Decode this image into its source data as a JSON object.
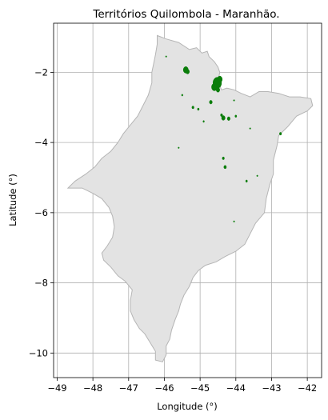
{
  "chart_data": {
    "type": "map",
    "title": "Territórios Quilombola - Maranhão.",
    "xlabel": "Longitude (°)",
    "ylabel": "Latitude (°)",
    "xlim": [
      -49.1,
      -41.6
    ],
    "ylim": [
      -10.7,
      -0.6
    ],
    "xticks": [
      -49,
      -48,
      -47,
      -46,
      -45,
      -44,
      -43,
      -42
    ],
    "yticks": [
      -2,
      -4,
      -6,
      -8,
      -10
    ],
    "xtick_labels": [
      "−49",
      "−48",
      "−47",
      "−46",
      "−45",
      "−44",
      "−43",
      "−42"
    ],
    "ytick_labels": [
      "−2",
      "−4",
      "−6",
      "−8",
      "−10"
    ],
    "grid": true,
    "colors": {
      "state_fill": "#e3e3e3",
      "state_edge": "#b5b5b5",
      "territory": "#0a7d0a"
    },
    "state_outline": [
      [
        -46.2,
        -0.95
      ],
      [
        -45.95,
        -1.05
      ],
      [
        -45.6,
        -1.15
      ],
      [
        -45.3,
        -1.35
      ],
      [
        -45.1,
        -1.3
      ],
      [
        -44.95,
        -1.45
      ],
      [
        -44.8,
        -1.4
      ],
      [
        -44.75,
        -1.55
      ],
      [
        -44.6,
        -1.7
      ],
      [
        -44.5,
        -1.85
      ],
      [
        -44.45,
        -2.0
      ],
      [
        -44.5,
        -2.25
      ],
      [
        -44.4,
        -2.5
      ],
      [
        -44.25,
        -2.45
      ],
      [
        -44.05,
        -2.5
      ],
      [
        -43.85,
        -2.6
      ],
      [
        -43.6,
        -2.7
      ],
      [
        -43.35,
        -2.55
      ],
      [
        -43.1,
        -2.55
      ],
      [
        -42.8,
        -2.6
      ],
      [
        -42.5,
        -2.7
      ],
      [
        -42.2,
        -2.7
      ],
      [
        -41.9,
        -2.75
      ],
      [
        -41.85,
        -2.95
      ],
      [
        -42.0,
        -3.1
      ],
      [
        -42.3,
        -3.25
      ],
      [
        -42.55,
        -3.55
      ],
      [
        -42.8,
        -3.8
      ],
      [
        -42.85,
        -4.1
      ],
      [
        -42.95,
        -4.5
      ],
      [
        -42.95,
        -4.9
      ],
      [
        -43.05,
        -5.2
      ],
      [
        -43.15,
        -5.6
      ],
      [
        -43.2,
        -6.0
      ],
      [
        -43.45,
        -6.3
      ],
      [
        -43.6,
        -6.6
      ],
      [
        -43.75,
        -6.9
      ],
      [
        -44.0,
        -7.1
      ],
      [
        -44.3,
        -7.25
      ],
      [
        -44.55,
        -7.4
      ],
      [
        -44.85,
        -7.5
      ],
      [
        -45.05,
        -7.65
      ],
      [
        -45.2,
        -7.85
      ],
      [
        -45.3,
        -8.1
      ],
      [
        -45.45,
        -8.35
      ],
      [
        -45.55,
        -8.6
      ],
      [
        -45.6,
        -8.8
      ],
      [
        -45.7,
        -9.05
      ],
      [
        -45.8,
        -9.35
      ],
      [
        -45.85,
        -9.6
      ],
      [
        -45.95,
        -9.8
      ],
      [
        -45.95,
        -10.05
      ],
      [
        -46.05,
        -10.25
      ],
      [
        -46.25,
        -10.2
      ],
      [
        -46.25,
        -9.95
      ],
      [
        -46.4,
        -9.7
      ],
      [
        -46.55,
        -9.45
      ],
      [
        -46.7,
        -9.3
      ],
      [
        -46.85,
        -9.05
      ],
      [
        -46.95,
        -8.8
      ],
      [
        -46.95,
        -8.5
      ],
      [
        -46.9,
        -8.2
      ],
      [
        -47.1,
        -7.95
      ],
      [
        -47.3,
        -7.8
      ],
      [
        -47.5,
        -7.55
      ],
      [
        -47.7,
        -7.35
      ],
      [
        -47.75,
        -7.15
      ],
      [
        -47.6,
        -6.95
      ],
      [
        -47.45,
        -6.7
      ],
      [
        -47.4,
        -6.4
      ],
      [
        -47.45,
        -6.1
      ],
      [
        -47.55,
        -5.85
      ],
      [
        -47.75,
        -5.6
      ],
      [
        -48.0,
        -5.45
      ],
      [
        -48.3,
        -5.3
      ],
      [
        -48.55,
        -5.3
      ],
      [
        -48.7,
        -5.3
      ],
      [
        -48.5,
        -5.1
      ],
      [
        -48.2,
        -4.9
      ],
      [
        -47.95,
        -4.7
      ],
      [
        -47.75,
        -4.45
      ],
      [
        -47.5,
        -4.25
      ],
      [
        -47.3,
        -4.0
      ],
      [
        -47.15,
        -3.75
      ],
      [
        -46.95,
        -3.5
      ],
      [
        -46.75,
        -3.25
      ],
      [
        -46.6,
        -2.95
      ],
      [
        -46.45,
        -2.65
      ],
      [
        -46.35,
        -2.3
      ],
      [
        -46.35,
        -2.0
      ],
      [
        -46.3,
        -1.75
      ],
      [
        -46.25,
        -1.5
      ],
      [
        -46.2,
        -1.2
      ]
    ],
    "territories": [
      {
        "lon": -45.4,
        "lat": -1.93,
        "r": 0.07
      },
      {
        "lon": -45.35,
        "lat": -1.98,
        "r": 0.05
      },
      {
        "lon": -44.52,
        "lat": -2.3,
        "r": 0.12
      },
      {
        "lon": -44.6,
        "lat": -2.42,
        "r": 0.08
      },
      {
        "lon": -44.45,
        "lat": -2.2,
        "r": 0.07
      },
      {
        "lon": -44.5,
        "lat": -2.5,
        "r": 0.05
      },
      {
        "lon": -44.7,
        "lat": -2.85,
        "r": 0.04
      },
      {
        "lon": -45.2,
        "lat": -3.0,
        "r": 0.03
      },
      {
        "lon": -45.05,
        "lat": -3.05,
        "r": 0.025
      },
      {
        "lon": -44.35,
        "lat": -3.3,
        "r": 0.05
      },
      {
        "lon": -44.2,
        "lat": -3.32,
        "r": 0.04
      },
      {
        "lon": -44.4,
        "lat": -3.22,
        "r": 0.03
      },
      {
        "lon": -44.0,
        "lat": -3.25,
        "r": 0.025
      },
      {
        "lon": -42.75,
        "lat": -3.75,
        "r": 0.03
      },
      {
        "lon": -44.35,
        "lat": -4.45,
        "r": 0.03
      },
      {
        "lon": -44.3,
        "lat": -4.7,
        "r": 0.035
      },
      {
        "lon": -43.7,
        "lat": -5.1,
        "r": 0.025
      },
      {
        "lon": -45.5,
        "lat": -2.65,
        "r": 0.02
      },
      {
        "lon": -44.9,
        "lat": -3.4,
        "r": 0.02
      },
      {
        "lon": -44.05,
        "lat": -2.8,
        "r": 0.015
      },
      {
        "lon": -43.6,
        "lat": -3.6,
        "r": 0.015
      },
      {
        "lon": -45.6,
        "lat": -4.15,
        "r": 0.015
      },
      {
        "lon": -44.05,
        "lat": -6.25,
        "r": 0.015
      },
      {
        "lon": -43.4,
        "lat": -4.95,
        "r": 0.015
      },
      {
        "lon": -45.95,
        "lat": -1.55,
        "r": 0.015
      }
    ]
  }
}
